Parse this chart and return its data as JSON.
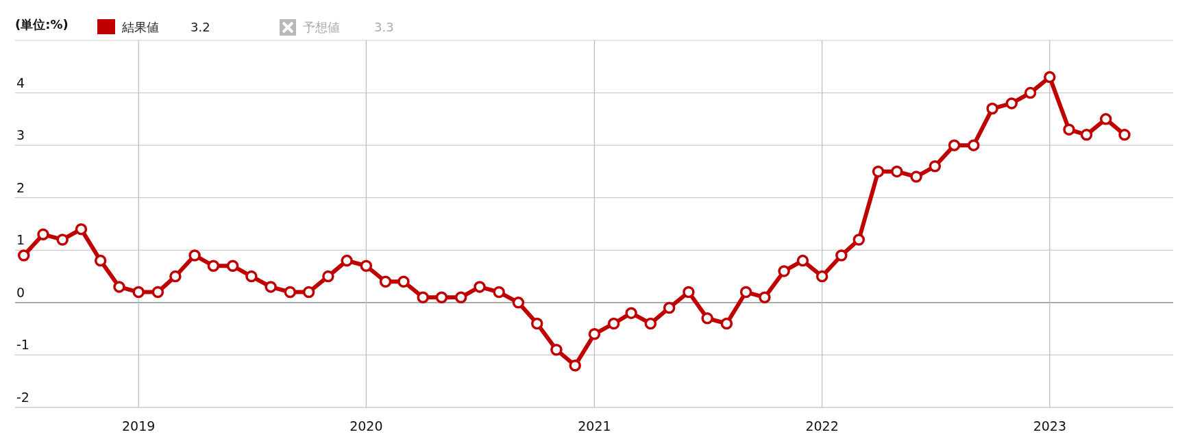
{
  "chart_data": {
    "type": "line",
    "ylabel": "(単位:%)",
    "x": [
      "2018-07",
      "2018-08",
      "2018-09",
      "2018-10",
      "2018-11",
      "2018-12",
      "2019-01",
      "2019-02",
      "2019-03",
      "2019-04",
      "2019-05",
      "2019-06",
      "2019-07",
      "2019-08",
      "2019-09",
      "2019-10",
      "2019-11",
      "2019-12",
      "2020-01",
      "2020-02",
      "2020-03",
      "2020-04",
      "2020-05",
      "2020-06",
      "2020-07",
      "2020-08",
      "2020-09",
      "2020-10",
      "2020-11",
      "2020-12",
      "2021-01",
      "2021-02",
      "2021-03",
      "2021-04",
      "2021-05",
      "2021-06",
      "2021-07",
      "2021-08",
      "2021-09",
      "2021-10",
      "2021-11",
      "2021-12",
      "2022-01",
      "2022-02",
      "2022-03",
      "2022-04",
      "2022-05",
      "2022-06",
      "2022-07",
      "2022-08",
      "2022-09",
      "2022-10",
      "2022-11",
      "2022-12",
      "2023-01",
      "2023-02",
      "2023-03",
      "2023-04",
      "2023-05"
    ],
    "series": [
      {
        "name": "結果値",
        "color": "#c00000",
        "values": [
          0.9,
          1.3,
          1.2,
          1.4,
          0.8,
          0.3,
          0.2,
          0.2,
          0.5,
          0.9,
          0.7,
          0.7,
          0.5,
          0.3,
          0.2,
          0.2,
          0.5,
          0.8,
          0.7,
          0.4,
          0.4,
          0.1,
          0.1,
          0.1,
          0.3,
          0.2,
          0.0,
          -0.4,
          -0.9,
          -1.2,
          -0.6,
          -0.4,
          -0.2,
          -0.4,
          -0.1,
          0.2,
          -0.3,
          -0.4,
          0.2,
          0.1,
          0.6,
          0.8,
          0.5,
          0.9,
          1.2,
          2.5,
          2.5,
          2.4,
          2.6,
          3.0,
          3.0,
          3.7,
          3.8,
          4.0,
          4.3,
          3.3,
          3.2,
          3.5,
          3.2
        ]
      }
    ],
    "annotations": [
      "3.2",
      "予想値",
      "3.3"
    ],
    "xlim": [
      "2018-06-17",
      "2023-07-18"
    ],
    "xticks": [
      {
        "value": "2019-01",
        "label": "2019"
      },
      {
        "value": "2020-01",
        "label": "2020"
      },
      {
        "value": "2021-01",
        "label": "2021"
      },
      {
        "value": "2022-01",
        "label": "2022"
      },
      {
        "value": "2023-01",
        "label": "2023"
      }
    ],
    "ylim": [
      -2,
      5
    ],
    "yticks": [
      -2,
      -1,
      0,
      1,
      2,
      3,
      4,
      {
        "value": 5,
        "label": null
      }
    ],
    "grid": true,
    "legend": "top left",
    "marker": "circle",
    "line_style": "solid"
  }
}
